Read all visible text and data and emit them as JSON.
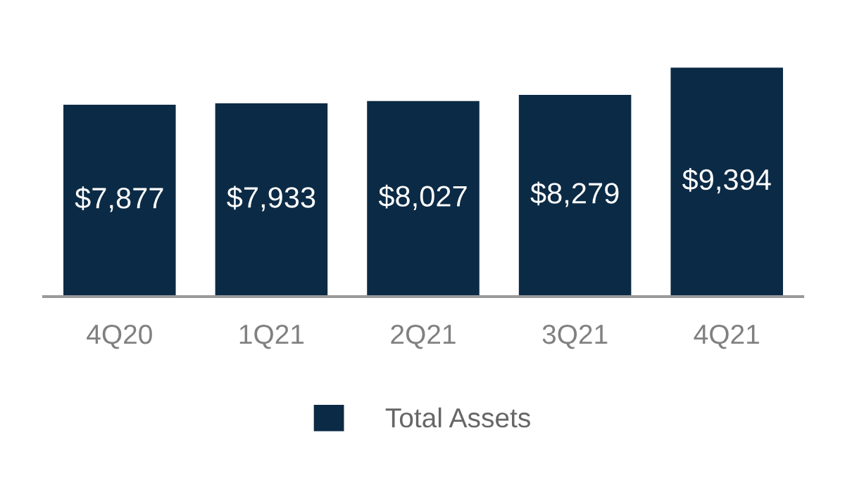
{
  "chart_data": {
    "type": "bar",
    "categories": [
      "4Q20",
      "1Q21",
      "2Q21",
      "3Q21",
      "4Q21"
    ],
    "series": [
      {
        "name": "Total Assets",
        "color": "#0b2a45",
        "values": [
          7877,
          7933,
          8027,
          8279,
          9394
        ],
        "value_labels": [
          "$7,877",
          "$7,933",
          "$8,027",
          "$8,279",
          "$9,394"
        ]
      }
    ],
    "tick_labels": "x",
    "grid": false,
    "legend": "bottom"
  }
}
